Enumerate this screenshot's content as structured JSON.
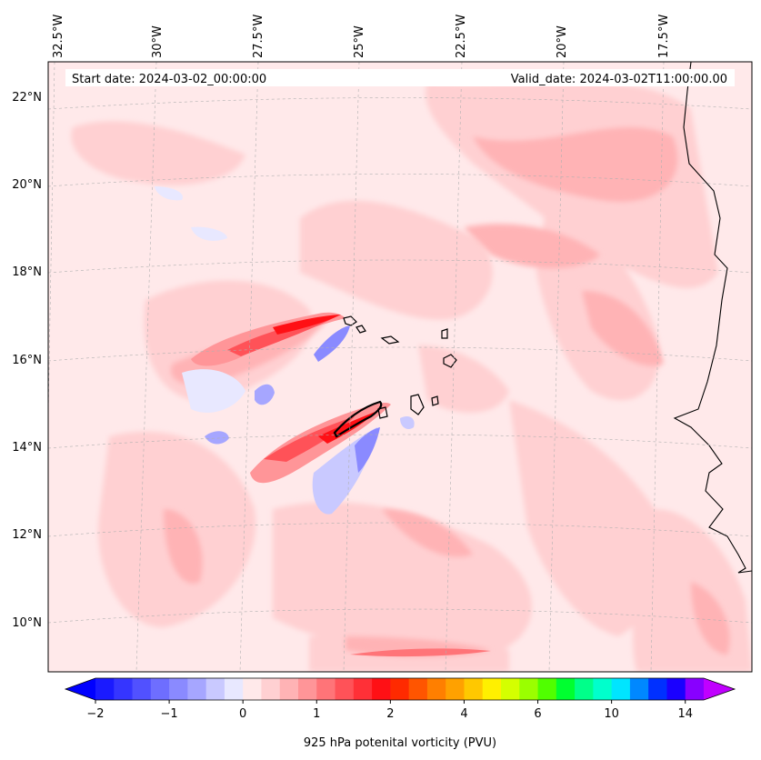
{
  "map": {
    "start_date": "Start date: 2024-03-02_00:00:00",
    "valid_date": "Valid_date: 2024-03-02T11:00:00.00",
    "lon_labels": [
      "32.5°W",
      "30°W",
      "27.5°W",
      "25°W",
      "22.5°W",
      "20°W",
      "17.5°W"
    ],
    "lat_labels": [
      "22°N",
      "20°N",
      "18°N",
      "16°N",
      "14°N",
      "12°N",
      "10°N"
    ],
    "background_color": "#ffe9ea"
  },
  "colorbar": {
    "label": "925 hPa potenital vorticity (PVU)",
    "tick_labels": [
      "−2",
      "−1",
      "0",
      "1",
      "2",
      "4",
      "6",
      "10",
      "14"
    ],
    "colors": [
      "#1a1aff",
      "#3535ff",
      "#5151ff",
      "#6e6eff",
      "#8a8aff",
      "#a6a6ff",
      "#c9c9ff",
      "#e8e8ff",
      "#ffe9ea",
      "#ffd0d2",
      "#ffb3b5",
      "#ff9598",
      "#ff7478",
      "#ff5258",
      "#ff3037",
      "#ff1015",
      "#ff2a00",
      "#ff5500",
      "#ff7f00",
      "#ffa100",
      "#ffc800",
      "#fff000",
      "#d4ff00",
      "#9aff00",
      "#50ff00",
      "#00ff30",
      "#00ff8a",
      "#00ffcc",
      "#00e5ff",
      "#0088ff",
      "#0030ff",
      "#1a00ff",
      "#8800ff"
    ],
    "under_color": "#0000ff",
    "over_color": "#c000ff"
  }
}
